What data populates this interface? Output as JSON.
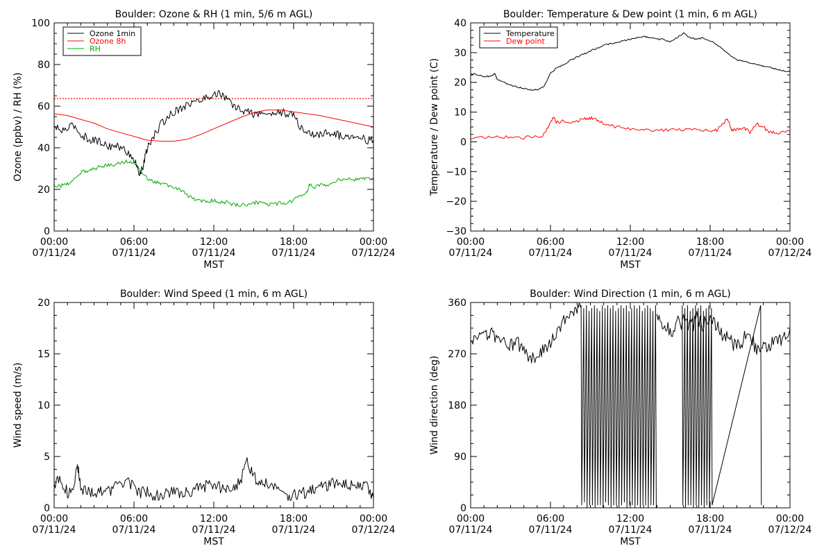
{
  "chart_data": [
    {
      "id": "ozone",
      "type": "line",
      "title": "Boulder: Ozone & RH (1 min, 5/6 m AGL)",
      "xlabel": "MST",
      "ylabel": "Ozone (ppbv) / RH (%)",
      "xlim": [
        0,
        24
      ],
      "ylim": [
        0,
        110
      ],
      "x_ticks": [
        {
          "x": 0,
          "time": "00:00",
          "date": "07/11/24"
        },
        {
          "x": 6,
          "time": "06:00",
          "date": "07/11/24"
        },
        {
          "x": 12,
          "time": "12:00",
          "date": "07/11/24"
        },
        {
          "x": 18,
          "time": "18:00",
          "date": "07/11/24"
        },
        {
          "x": 24,
          "time": "00:00",
          "date": "07/12/24"
        }
      ],
      "y_ticks": [
        "0",
        "20",
        "40",
        "60",
        "80",
        "100"
      ],
      "grid": false,
      "legend_position": "top-left",
      "reference_lines": [
        {
          "y": 70,
          "color": "#ff0000",
          "style": "dotted"
        }
      ],
      "series": [
        {
          "name": "Ozone 1min",
          "color": "#000000",
          "legend_color": "#000000",
          "noise": 2.2,
          "x": [
            0,
            0.5,
            1,
            1.5,
            2,
            2.5,
            3,
            3.5,
            4,
            4.5,
            5,
            5.5,
            6,
            6.25,
            6.5,
            6.75,
            7,
            7.5,
            8,
            8.5,
            9,
            9.5,
            10,
            10.5,
            11,
            11.5,
            12,
            12.5,
            13,
            13.5,
            14,
            14.5,
            15,
            15.5,
            16,
            16.5,
            17,
            17.5,
            18,
            18.5,
            19,
            19.5,
            20,
            20.5,
            21,
            21.5,
            22,
            22.5,
            23,
            23.5,
            24
          ],
          "y": [
            55,
            53,
            54,
            56,
            51,
            49,
            48,
            47,
            45,
            45,
            44,
            42,
            38,
            33,
            30,
            36,
            44,
            50,
            56,
            60,
            63,
            65,
            67,
            68,
            69,
            71,
            72,
            73,
            69,
            66,
            64,
            63,
            62,
            62,
            62,
            62,
            63,
            62,
            61,
            55,
            52,
            51,
            51,
            52,
            52,
            50,
            50,
            51,
            50,
            48,
            48
          ]
        },
        {
          "name": "Ozone 8h",
          "color": "#ff0000",
          "legend_color": "#ff0000",
          "noise": 0,
          "x": [
            0,
            1,
            2,
            3,
            4,
            5,
            6,
            7,
            8,
            9,
            10,
            11,
            12,
            13,
            14,
            15,
            16,
            17,
            18,
            19,
            20,
            21,
            22,
            23,
            24
          ],
          "y": [
            62,
            61,
            59,
            57,
            54,
            52,
            50,
            48,
            47.5,
            47.5,
            48.5,
            51,
            54,
            57,
            60,
            62.5,
            64,
            64,
            63,
            62,
            61,
            59.5,
            58,
            56.5,
            55
          ]
        },
        {
          "name": "RH",
          "color": "#00aa00",
          "legend_color": "#00aa00",
          "noise": 1.0,
          "x": [
            0,
            0.5,
            1,
            1.5,
            2,
            2.5,
            3,
            3.5,
            4,
            4.5,
            5,
            5.5,
            6,
            6.5,
            7,
            7.5,
            8,
            8.5,
            9,
            9.5,
            10,
            10.5,
            11,
            11.5,
            12,
            12.5,
            13,
            13.5,
            14,
            14.5,
            15,
            15.5,
            16,
            16.5,
            17,
            17.5,
            18,
            18.5,
            19,
            19.2,
            19.5,
            20,
            20.5,
            21,
            21.5,
            22,
            22.5,
            23,
            23.5,
            24
          ],
          "y": [
            24,
            24,
            25,
            27,
            31,
            32,
            33,
            34,
            35,
            35,
            36,
            37,
            36,
            32,
            28,
            26,
            25,
            24,
            23,
            22,
            19,
            17,
            16,
            16,
            16,
            15,
            15,
            14,
            14,
            14,
            15,
            15,
            14,
            14,
            15,
            15,
            16,
            19,
            20,
            25,
            22,
            25,
            24,
            26,
            27,
            28,
            27,
            27,
            28,
            28
          ]
        }
      ]
    },
    {
      "id": "temperature",
      "type": "line",
      "title": "Boulder: Temperature & Dew point (1 min, 6 m AGL)",
      "xlabel": "MST",
      "ylabel": "Temperature / Dew point (C)",
      "xlim": [
        0,
        24
      ],
      "ylim": [
        -30,
        40
      ],
      "x_ticks": [
        {
          "x": 0,
          "time": "00:00",
          "date": "07/11/24"
        },
        {
          "x": 6,
          "time": "06:00",
          "date": "07/11/24"
        },
        {
          "x": 12,
          "time": "12:00",
          "date": "07/11/24"
        },
        {
          "x": 18,
          "time": "18:00",
          "date": "07/11/24"
        },
        {
          "x": 24,
          "time": "00:00",
          "date": "07/12/24"
        }
      ],
      "y_ticks": [
        "−30",
        "−20",
        "−10",
        "0",
        "10",
        "20",
        "30",
        "40"
      ],
      "grid": false,
      "legend_position": "top-left",
      "reference_lines": [],
      "series": [
        {
          "name": "Temperature",
          "color": "#000000",
          "legend_color": "#000000",
          "noise": 0.25,
          "x": [
            0,
            0.5,
            1,
            1.5,
            1.8,
            2,
            2.5,
            3,
            3.5,
            4,
            4.5,
            5,
            5.5,
            6,
            6.5,
            7,
            7.5,
            8,
            8.5,
            9,
            9.5,
            10,
            10.5,
            11,
            11.5,
            12,
            12.5,
            13,
            13.5,
            14,
            14.5,
            15,
            15.5,
            16,
            16.5,
            17,
            17.5,
            18,
            18.5,
            19,
            19.5,
            20,
            20.5,
            21,
            21.5,
            22,
            22.5,
            23,
            23.5,
            24
          ],
          "y": [
            23,
            22.5,
            22,
            22,
            23,
            21,
            20,
            19,
            18.5,
            18,
            17.5,
            17.5,
            18.5,
            23,
            25,
            26,
            27.5,
            28.5,
            29.5,
            30.5,
            31.5,
            32.5,
            33,
            33.5,
            34,
            34.5,
            35,
            35.5,
            35,
            34.5,
            34.5,
            33.5,
            35,
            36.5,
            35,
            34.5,
            35,
            34,
            32.5,
            31,
            29,
            27.5,
            27,
            26.5,
            26,
            25.5,
            25,
            24.5,
            24,
            23.5
          ]
        },
        {
          "name": "Dew point",
          "color": "#ff0000",
          "legend_color": "#ff0000",
          "noise": 0.6,
          "x": [
            0,
            1,
            2,
            3,
            4,
            5,
            5.5,
            6,
            6.2,
            6.5,
            7,
            7.5,
            8,
            8.5,
            9,
            9.5,
            10,
            11,
            12,
            13,
            14,
            15,
            16,
            17,
            18,
            18.5,
            19,
            19.3,
            19.6,
            20,
            20.5,
            21,
            21.5,
            22,
            22.5,
            23,
            24
          ],
          "y": [
            1.5,
            1.5,
            1.5,
            1.5,
            1.5,
            1.5,
            2.5,
            6,
            8.5,
            6.5,
            7,
            6.5,
            7,
            7.5,
            8,
            7.5,
            6,
            5,
            4.5,
            4,
            4,
            4,
            4,
            4,
            3.5,
            4,
            6,
            8,
            4,
            4,
            5,
            3,
            6,
            5,
            3,
            3,
            3.5
          ]
        }
      ]
    },
    {
      "id": "windspeed",
      "type": "line",
      "title": "Boulder: Wind Speed (1 min, 6 m AGL)",
      "xlabel": "MST",
      "ylabel": "Wind speed (m/s)",
      "xlim": [
        0,
        24
      ],
      "ylim": [
        0,
        20
      ],
      "x_ticks": [
        {
          "x": 0,
          "time": "00:00",
          "date": "07/11/24"
        },
        {
          "x": 6,
          "time": "06:00",
          "date": "07/11/24"
        },
        {
          "x": 12,
          "time": "12:00",
          "date": "07/11/24"
        },
        {
          "x": 18,
          "time": "18:00",
          "date": "07/11/24"
        },
        {
          "x": 24,
          "time": "00:00",
          "date": "07/12/24"
        }
      ],
      "y_ticks": [
        "0",
        "5",
        "10",
        "15",
        "20"
      ],
      "grid": false,
      "legend_position": "none",
      "reference_lines": [],
      "series": [
        {
          "name": "",
          "color": "#000000",
          "noise": 0.6,
          "x": [
            0,
            0.5,
            1,
            1.5,
            1.8,
            2,
            2.5,
            3,
            3.5,
            4,
            4.5,
            5,
            5.5,
            6,
            6.5,
            7,
            7.5,
            8,
            8.5,
            9,
            9.5,
            10,
            10.5,
            11,
            11.5,
            12,
            12.5,
            13,
            13.5,
            14,
            14.5,
            15,
            15.5,
            16,
            16.5,
            17,
            17.5,
            18,
            18.5,
            19,
            19.5,
            20,
            20.5,
            21,
            21.5,
            22,
            22.5,
            23,
            23.5,
            24
          ],
          "y": [
            2.5,
            2.5,
            1.5,
            2.5,
            4,
            2,
            1.5,
            1.5,
            1.5,
            1.5,
            2,
            2.5,
            2.5,
            2,
            1.5,
            1.5,
            1.2,
            1.3,
            1.3,
            1.5,
            1.5,
            1.5,
            1.6,
            2,
            2.2,
            2,
            2,
            2,
            2.2,
            2.5,
            4.5,
            3,
            2.5,
            2.5,
            2.2,
            1.5,
            1.2,
            1.2,
            1.3,
            1.5,
            1.8,
            2,
            2.2,
            2.5,
            2.2,
            2.2,
            2.2,
            2.5,
            2,
            1
          ]
        }
      ]
    },
    {
      "id": "winddir",
      "type": "line",
      "title": "Boulder: Wind Direction (1 min, 6 m AGL)",
      "xlabel": "MST",
      "ylabel": "Wind direction (deg)",
      "xlim": [
        0,
        24
      ],
      "ylim": [
        0,
        360
      ],
      "x_ticks": [
        {
          "x": 0,
          "time": "00:00",
          "date": "07/11/24"
        },
        {
          "x": 6,
          "time": "06:00",
          "date": "07/11/24"
        },
        {
          "x": 12,
          "time": "12:00",
          "date": "07/11/24"
        },
        {
          "x": 18,
          "time": "18:00",
          "date": "07/11/24"
        },
        {
          "x": 24,
          "time": "00:00",
          "date": "07/12/24"
        }
      ],
      "y_ticks": [
        "0",
        "90",
        "180",
        "270",
        "360"
      ],
      "grid": false,
      "legend_position": "none",
      "reference_lines": [],
      "series": [
        {
          "name": "",
          "color": "#000000",
          "noise": 12,
          "x": [
            0,
            0.5,
            1,
            1.5,
            2,
            2.5,
            3,
            3.5,
            4,
            4.5,
            5,
            5.5,
            6,
            6.5,
            7,
            7.5,
            8,
            8.3
          ],
          "y": [
            285,
            295,
            300,
            305,
            300,
            290,
            285,
            290,
            275,
            265,
            260,
            280,
            290,
            310,
            330,
            345,
            350,
            355
          ]
        },
        {
          "name": "",
          "color": "#000000",
          "noise": 15,
          "x": [
            14,
            14.5,
            15,
            15.5,
            16,
            16.5,
            17,
            17.5,
            18,
            18.5,
            19,
            19.5,
            20,
            20.5,
            21,
            21.5,
            22,
            22.5,
            23,
            23.5,
            24
          ],
          "y": [
            330,
            320,
            310,
            320,
            330,
            320,
            330,
            320,
            330,
            315,
            300,
            290,
            285,
            295,
            300,
            280,
            285,
            285,
            290,
            295,
            315
          ]
        },
        {
          "name": "",
          "color": "#000000",
          "noise": 0,
          "segments": true,
          "x": [
            8.3,
            8.35,
            8.5,
            8.55,
            8.7,
            8.75,
            8.9,
            8.95,
            9.1,
            9.15,
            9.3,
            9.35,
            9.5,
            9.55,
            9.7,
            9.75,
            9.9,
            9.95,
            10.1,
            10.15,
            10.3,
            10.35,
            10.5,
            10.55,
            10.7,
            10.75,
            10.9,
            10.95,
            11.1,
            11.15,
            11.3,
            11.35,
            11.5,
            11.55,
            11.7,
            11.75,
            11.9,
            11.95,
            12.1,
            12.15,
            12.3,
            12.35,
            12.5,
            12.55,
            12.7,
            12.75,
            12.9,
            12.95,
            13.1,
            13.15,
            13.3,
            13.35,
            13.5,
            13.55,
            13.7,
            13.75,
            13.9,
            13.95
          ],
          "y": [
            355,
            5,
            350,
            10,
            355,
            0,
            345,
            5,
            350,
            5,
            355,
            0,
            350,
            5,
            345,
            5,
            355,
            0,
            350,
            10,
            355,
            5,
            350,
            0,
            355,
            5,
            345,
            5,
            350,
            0,
            355,
            5,
            350,
            10,
            355,
            0,
            345,
            5,
            350,
            5,
            355,
            0,
            350,
            5,
            355,
            0,
            345,
            5,
            350,
            5,
            355,
            0,
            350,
            5,
            345,
            5,
            355,
            0
          ]
        },
        {
          "name": "",
          "color": "#000000",
          "noise": 0,
          "segments": true,
          "x": [
            15.9,
            15.95,
            16.1,
            16.15,
            16.3,
            16.35,
            16.5,
            16.55,
            16.7,
            16.75,
            16.9,
            16.95,
            17.1,
            17.15,
            17.3,
            17.35,
            17.5,
            17.55,
            17.7,
            17.75,
            17.9,
            17.95,
            18.1,
            18.15,
            21.8,
            21.85
          ],
          "y": [
            355,
            5,
            350,
            0,
            355,
            5,
            345,
            5,
            350,
            0,
            355,
            5,
            350,
            0,
            355,
            5,
            345,
            0,
            350,
            5,
            355,
            0,
            350,
            5,
            355,
            5
          ]
        }
      ]
    }
  ]
}
